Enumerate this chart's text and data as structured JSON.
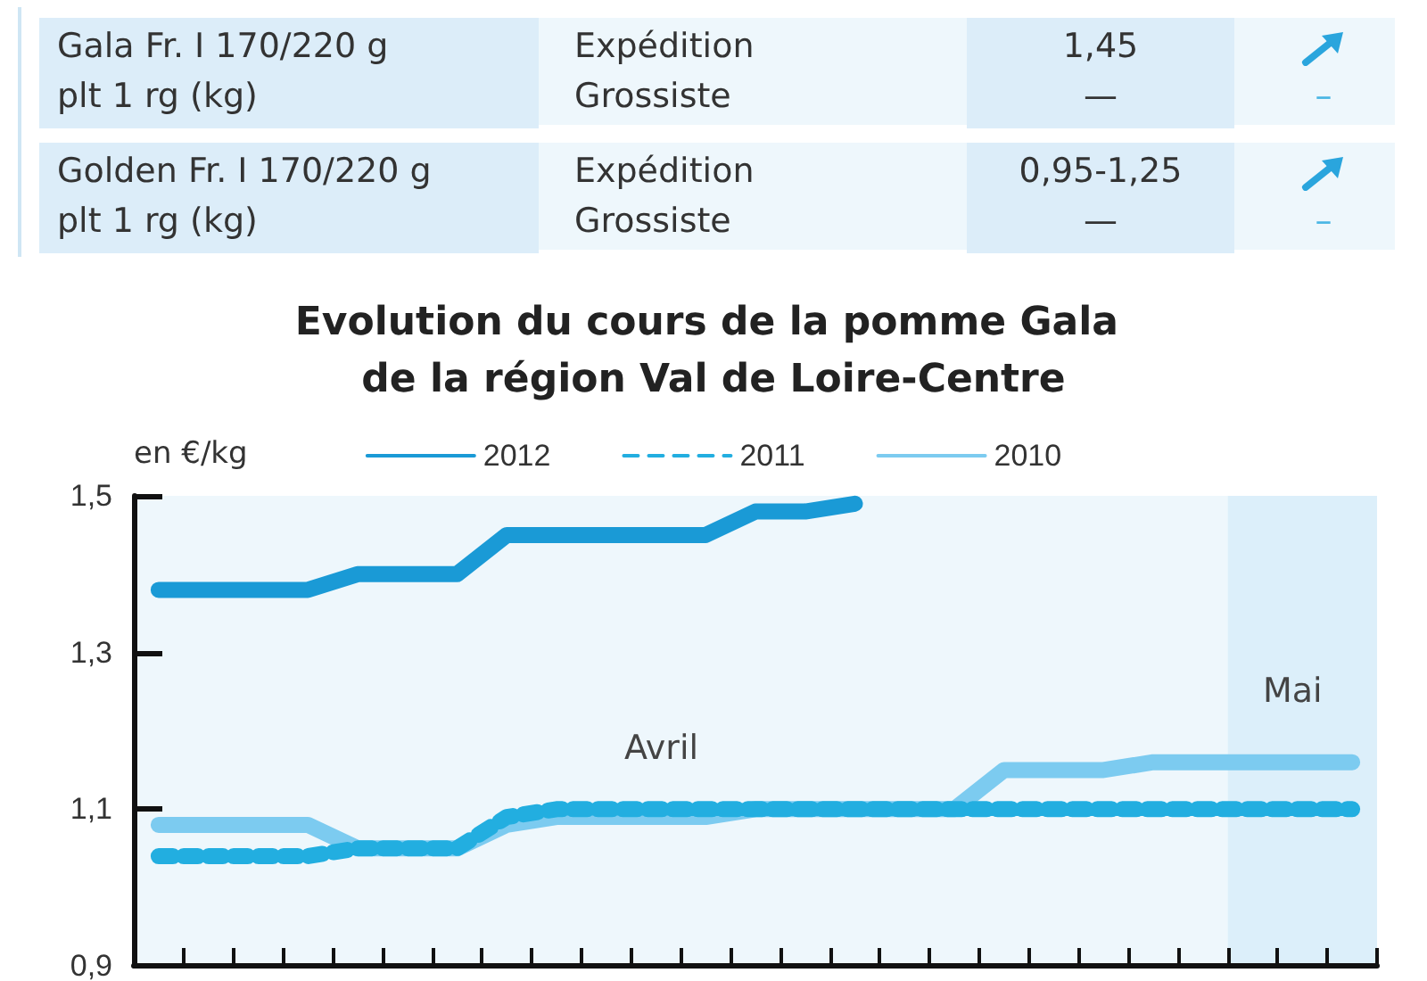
{
  "chart_data": [
    {
      "type": "other",
      "annotations": [
        "Gala Fr. I 170/220 g",
        "plt 1 rg (kg)",
        "Expédition",
        "Grossiste",
        "1,45",
        "—",
        "–",
        "Golden Fr. I 170/220 g",
        "plt 1 rg (kg)",
        "Expédition",
        "Grossiste",
        "0,95-1,25",
        "—",
        "–"
      ]
    },
    {
      "type": "line",
      "title": "Evolution du cours de la pomme Gala de la région Val de Loire-Centre",
      "ylabel": "en €/kg",
      "categories": [
        null,
        null,
        null,
        null,
        null,
        null,
        null,
        null,
        null,
        null,
        null,
        null,
        null,
        null,
        null,
        null,
        null,
        null,
        null,
        null,
        null,
        null,
        null,
        null,
        null
      ],
      "ylim": [
        0.9,
        1.5
      ],
      "yticks": [
        {
          "value": 0.9,
          "label": "0,9"
        },
        {
          "value": 1.1,
          "label": "1,1"
        },
        {
          "value": 1.3,
          "label": "1,3"
        },
        {
          "value": 1.5,
          "label": "1,5"
        }
      ],
      "tick_labels": "y",
      "grid": false,
      "legend": "top",
      "marker": "none",
      "series": [
        {
          "name": "2012",
          "color": "#1a9ad6",
          "line_style": "solid",
          "values": [
            1.38,
            1.38,
            1.38,
            1.38,
            1.4,
            1.4,
            1.4,
            1.45,
            1.45,
            1.45,
            1.45,
            1.45,
            1.48,
            1.48,
            1.49,
            null,
            null,
            null,
            null,
            null,
            null,
            null,
            null,
            null,
            null
          ]
        },
        {
          "name": "2011",
          "color": "#22aee0",
          "line_style": "dashed",
          "values": [
            1.04,
            1.04,
            1.04,
            1.04,
            1.05,
            1.05,
            1.05,
            1.09,
            1.1,
            1.1,
            1.1,
            1.1,
            1.1,
            1.1,
            1.1,
            1.1,
            1.1,
            1.1,
            1.1,
            1.1,
            1.1,
            1.1,
            1.1,
            1.1,
            1.1
          ]
        },
        {
          "name": "2010",
          "color": "#7ccbf0",
          "line_style": "solid",
          "values": [
            1.08,
            1.08,
            1.08,
            1.08,
            1.05,
            1.05,
            1.05,
            1.08,
            1.09,
            1.09,
            1.09,
            1.09,
            1.1,
            1.1,
            1.1,
            1.1,
            1.1,
            1.15,
            1.15,
            1.15,
            1.16,
            1.16,
            1.16,
            1.16,
            1.16
          ]
        }
      ],
      "annotations": [
        "Avril",
        "Mai"
      ]
    }
  ]
}
